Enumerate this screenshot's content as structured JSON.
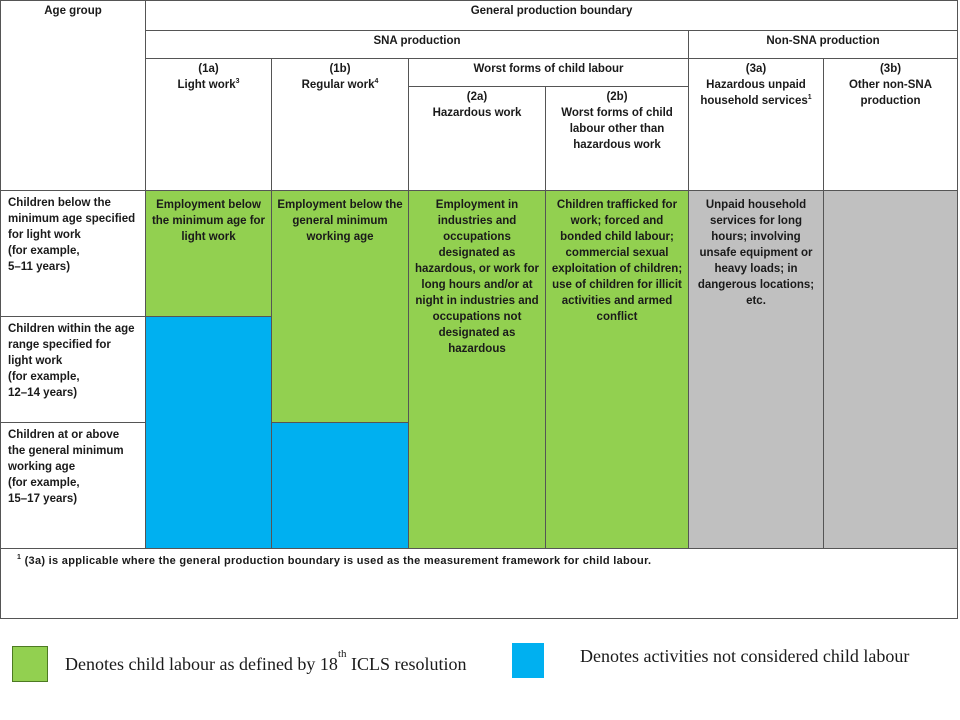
{
  "header": {
    "age_group": "Age group",
    "boundary": "General production boundary",
    "sna": "SNA production",
    "non_sna": "Non-SNA production",
    "col_1a_code": "(1a)",
    "col_1a_label": "Light work",
    "col_1a_sup": "3",
    "col_1b_code": "(1b)",
    "col_1b_label": "Regular work",
    "col_1b_sup": "4",
    "worst_forms": "Worst forms of child labour",
    "col_2a_code": "(2a)",
    "col_2a_label": "Hazardous work",
    "col_2b_code": "(2b)",
    "col_2b_label": "Worst forms of child labour other than hazardous work",
    "col_3a_code": "(3a)",
    "col_3a_label": "Hazardous unpaid household services",
    "col_3a_sup": "1",
    "col_3b_code": "(3b)",
    "col_3b_label": "Other non-SNA production"
  },
  "rows": [
    {
      "age_lines": [
        "Children below the minimum age specified for light work",
        "(for example,",
        "5–11 years)"
      ]
    },
    {
      "age_lines": [
        "Children within the age range specified for light work",
        "(for example,",
        "12–14 years)"
      ]
    },
    {
      "age_lines": [
        "Children at or above the general minimum working age",
        "(for example,",
        "15–17 years)"
      ]
    }
  ],
  "cells": {
    "r1_1a": "Employment below the minimum age for light work",
    "r1_1b": "Employment below the general minimum working age",
    "col_2a": "Employment in industries and occupations designated as hazardous, or work for long hours and/or at night in industries and occupations not designated as hazardous",
    "col_2b": "Children trafficked for work; forced and bonded child labour; commercial sexual exploitation of children; use of children for illicit activities and armed conflict",
    "col_3a": "Unpaid household services for long hours; involving unsafe equipment or heavy loads; in dangerous locations; etc."
  },
  "footnote": {
    "sup": "1",
    "text": "(3a) is applicable where the general production boundary is used as the measurement framework for child labour."
  },
  "legend": {
    "green_text_before": "Denotes child labour as defined by 18",
    "green_text_sup": "th",
    "green_text_after": " ICLS resolution",
    "blue_text": "Denotes activities not considered child labour"
  },
  "colors": {
    "child_labour": "#92d050",
    "not_child_labour": "#00b0f0",
    "non_sna_other": "#c0c0c0"
  }
}
